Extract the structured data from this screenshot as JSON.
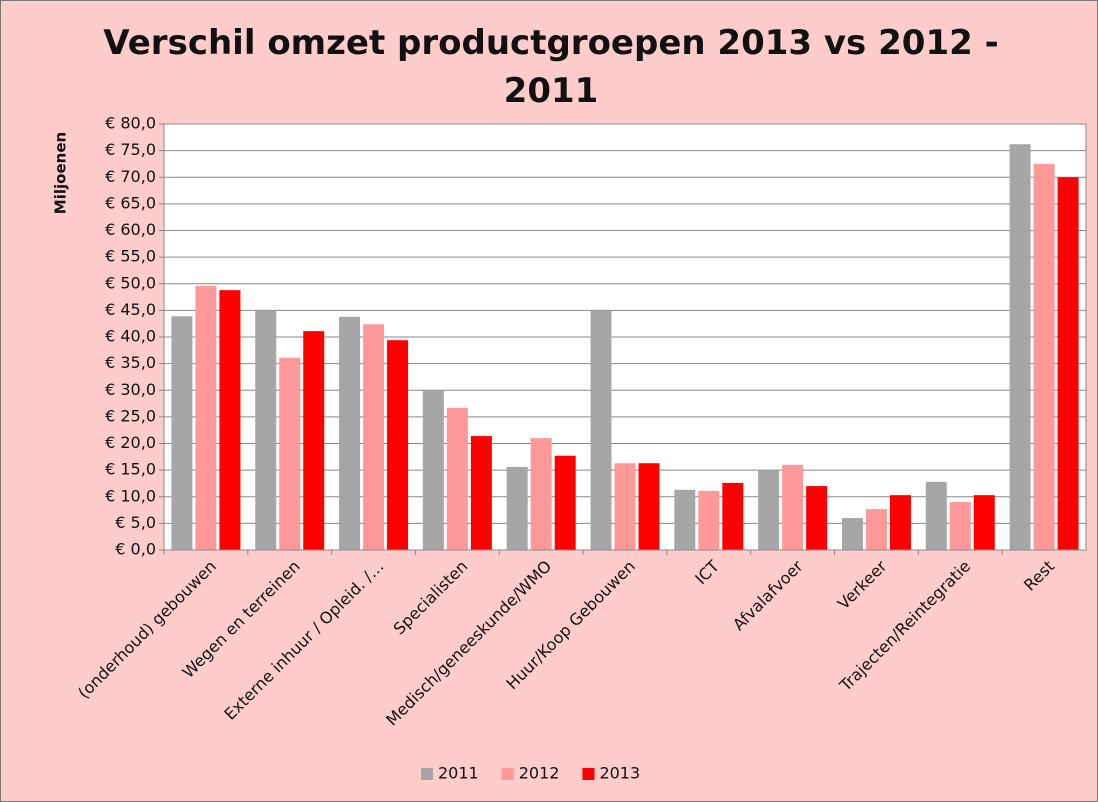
{
  "chart_data": {
    "type": "bar",
    "title": "Verschil omzet productgroepen 2013 vs 2012 - 2011",
    "y_label": "Miljoenen",
    "categories": [
      "(onderhoud) gebouwen",
      "Wegen en terreinen",
      "Externe inhuur / Opleid. /…",
      "Specialisten",
      "Medisch/geneeskunde/WMO",
      "Huur/Koop Gebouwen",
      "ICT",
      "Afvalafvoer",
      "Verkeer",
      "Trajecten/Reintegratie",
      "Rest"
    ],
    "series": [
      {
        "name": "2011",
        "color": "#a6a6a6",
        "values": [
          43.9,
          44.9,
          43.8,
          29.9,
          15.6,
          44.9,
          11.3,
          15.0,
          6.0,
          12.8,
          76.2
        ]
      },
      {
        "name": "2012",
        "color": "#ff9999",
        "values": [
          49.6,
          36.1,
          42.4,
          26.7,
          21.0,
          16.3,
          11.1,
          16.0,
          7.7,
          9.0,
          72.5
        ]
      },
      {
        "name": "2013",
        "color": "#ff0000",
        "values": [
          48.8,
          41.1,
          39.4,
          21.4,
          17.7,
          16.3,
          12.6,
          12.0,
          10.3,
          10.3,
          70.0
        ]
      }
    ],
    "ylim": [
      0,
      80
    ],
    "yticks": [
      {
        "value": 0,
        "label": "€ 0,0"
      },
      {
        "value": 5,
        "label": "€ 5,0"
      },
      {
        "value": 10,
        "label": "€ 10,0"
      },
      {
        "value": 15,
        "label": "€ 15,0"
      },
      {
        "value": 20,
        "label": "€ 20,0"
      },
      {
        "value": 25,
        "label": "€ 25,0"
      },
      {
        "value": 30,
        "label": "€ 30,0"
      },
      {
        "value": 35,
        "label": "€ 35,0"
      },
      {
        "value": 40,
        "label": "€ 40,0"
      },
      {
        "value": 45,
        "label": "€ 45,0"
      },
      {
        "value": 50,
        "label": "€ 50,0"
      },
      {
        "value": 55,
        "label": "€ 55,0"
      },
      {
        "value": 60,
        "label": "€ 60,0"
      },
      {
        "value": 65,
        "label": "€ 65,0"
      },
      {
        "value": 70,
        "label": "€ 70,0"
      },
      {
        "value": 75,
        "label": "€ 75,0"
      },
      {
        "value": 80,
        "label": "€ 80,0"
      }
    ],
    "grid": true,
    "legend": "bottom"
  }
}
